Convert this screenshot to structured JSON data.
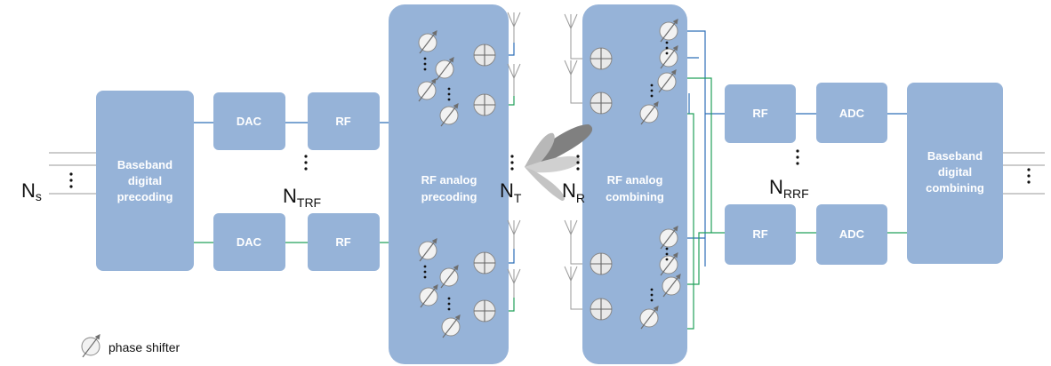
{
  "blocks": {
    "baseband_precoding": [
      "Baseband",
      "digital",
      "precoding"
    ],
    "dac": "DAC",
    "rf": "RF",
    "rf_analog_precoding": [
      "RF analog",
      "precoding"
    ],
    "rf_analog_combining": [
      "RF analog",
      "combining"
    ],
    "adc": "ADC",
    "baseband_combining": [
      "Baseband",
      "digital",
      "combining"
    ]
  },
  "labels": {
    "ns_main": "N",
    "ns_sub": "s",
    "ntrf_main": "N",
    "ntrf_sub": "TRF",
    "nt_main": "N",
    "nt_sub": "T",
    "nr_main": "N",
    "nr_sub": "R",
    "nrrf_main": "N",
    "nrrf_sub": "RRF"
  },
  "legend": {
    "phase_shifter": "phase shifter"
  },
  "colors": {
    "block": "#96b3d8",
    "wire_blue": "#2e6fb7",
    "wire_green": "#22a05a"
  }
}
